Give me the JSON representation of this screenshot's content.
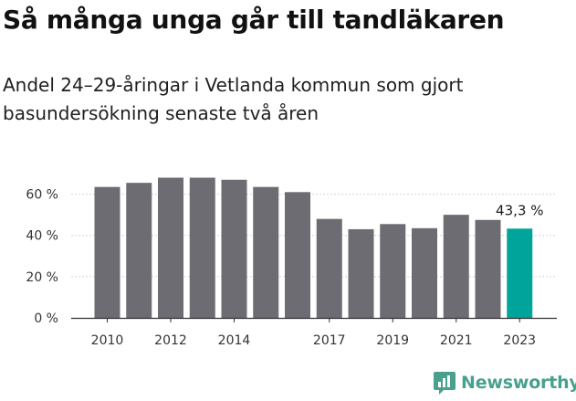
{
  "header": {
    "title": "Så många unga går till tandläkaren",
    "subtitle": "Andel 24–29-åringar i Vetlanda kommun som gjort basundersökning senaste två åren"
  },
  "brand": {
    "name": "Newsworthy",
    "color": "#49a08e"
  },
  "colors": {
    "bar": "#6d6c72",
    "highlight": "#00a49a",
    "grid": "#d4d4d4",
    "axis": "#333333"
  },
  "chart_data": {
    "type": "bar",
    "categories": [
      "2010",
      "2011",
      "2012",
      "2013",
      "2014",
      "2015",
      "2016",
      "2017",
      "2018",
      "2019",
      "2020",
      "2021",
      "2022",
      "2023"
    ],
    "values": [
      63.5,
      65.5,
      68,
      68,
      67,
      63.5,
      61,
      48,
      43,
      45.5,
      43.5,
      50,
      47.5,
      43.3
    ],
    "tick_labels": [
      {
        "category": "2010",
        "label": "2010"
      },
      {
        "category": "2012",
        "label": "2012"
      },
      {
        "category": "2014",
        "label": "2014"
      },
      {
        "category": "2017",
        "label": "2017"
      },
      {
        "category": "2019",
        "label": "2019"
      },
      {
        "category": "2021",
        "label": "2021"
      },
      {
        "category": "2023",
        "label": "2023"
      }
    ],
    "yticks": [
      {
        "value": 0,
        "label": "0 %"
      },
      {
        "value": 20,
        "label": "20 %"
      },
      {
        "value": 40,
        "label": "40 %"
      },
      {
        "value": 60,
        "label": "60 %"
      }
    ],
    "ylim": [
      0,
      70
    ],
    "grid": true,
    "highlight_category": "2023",
    "data_labels": [
      {
        "category": "2023",
        "label": "43,3 %"
      }
    ],
    "xlabel": "",
    "ylabel": ""
  }
}
